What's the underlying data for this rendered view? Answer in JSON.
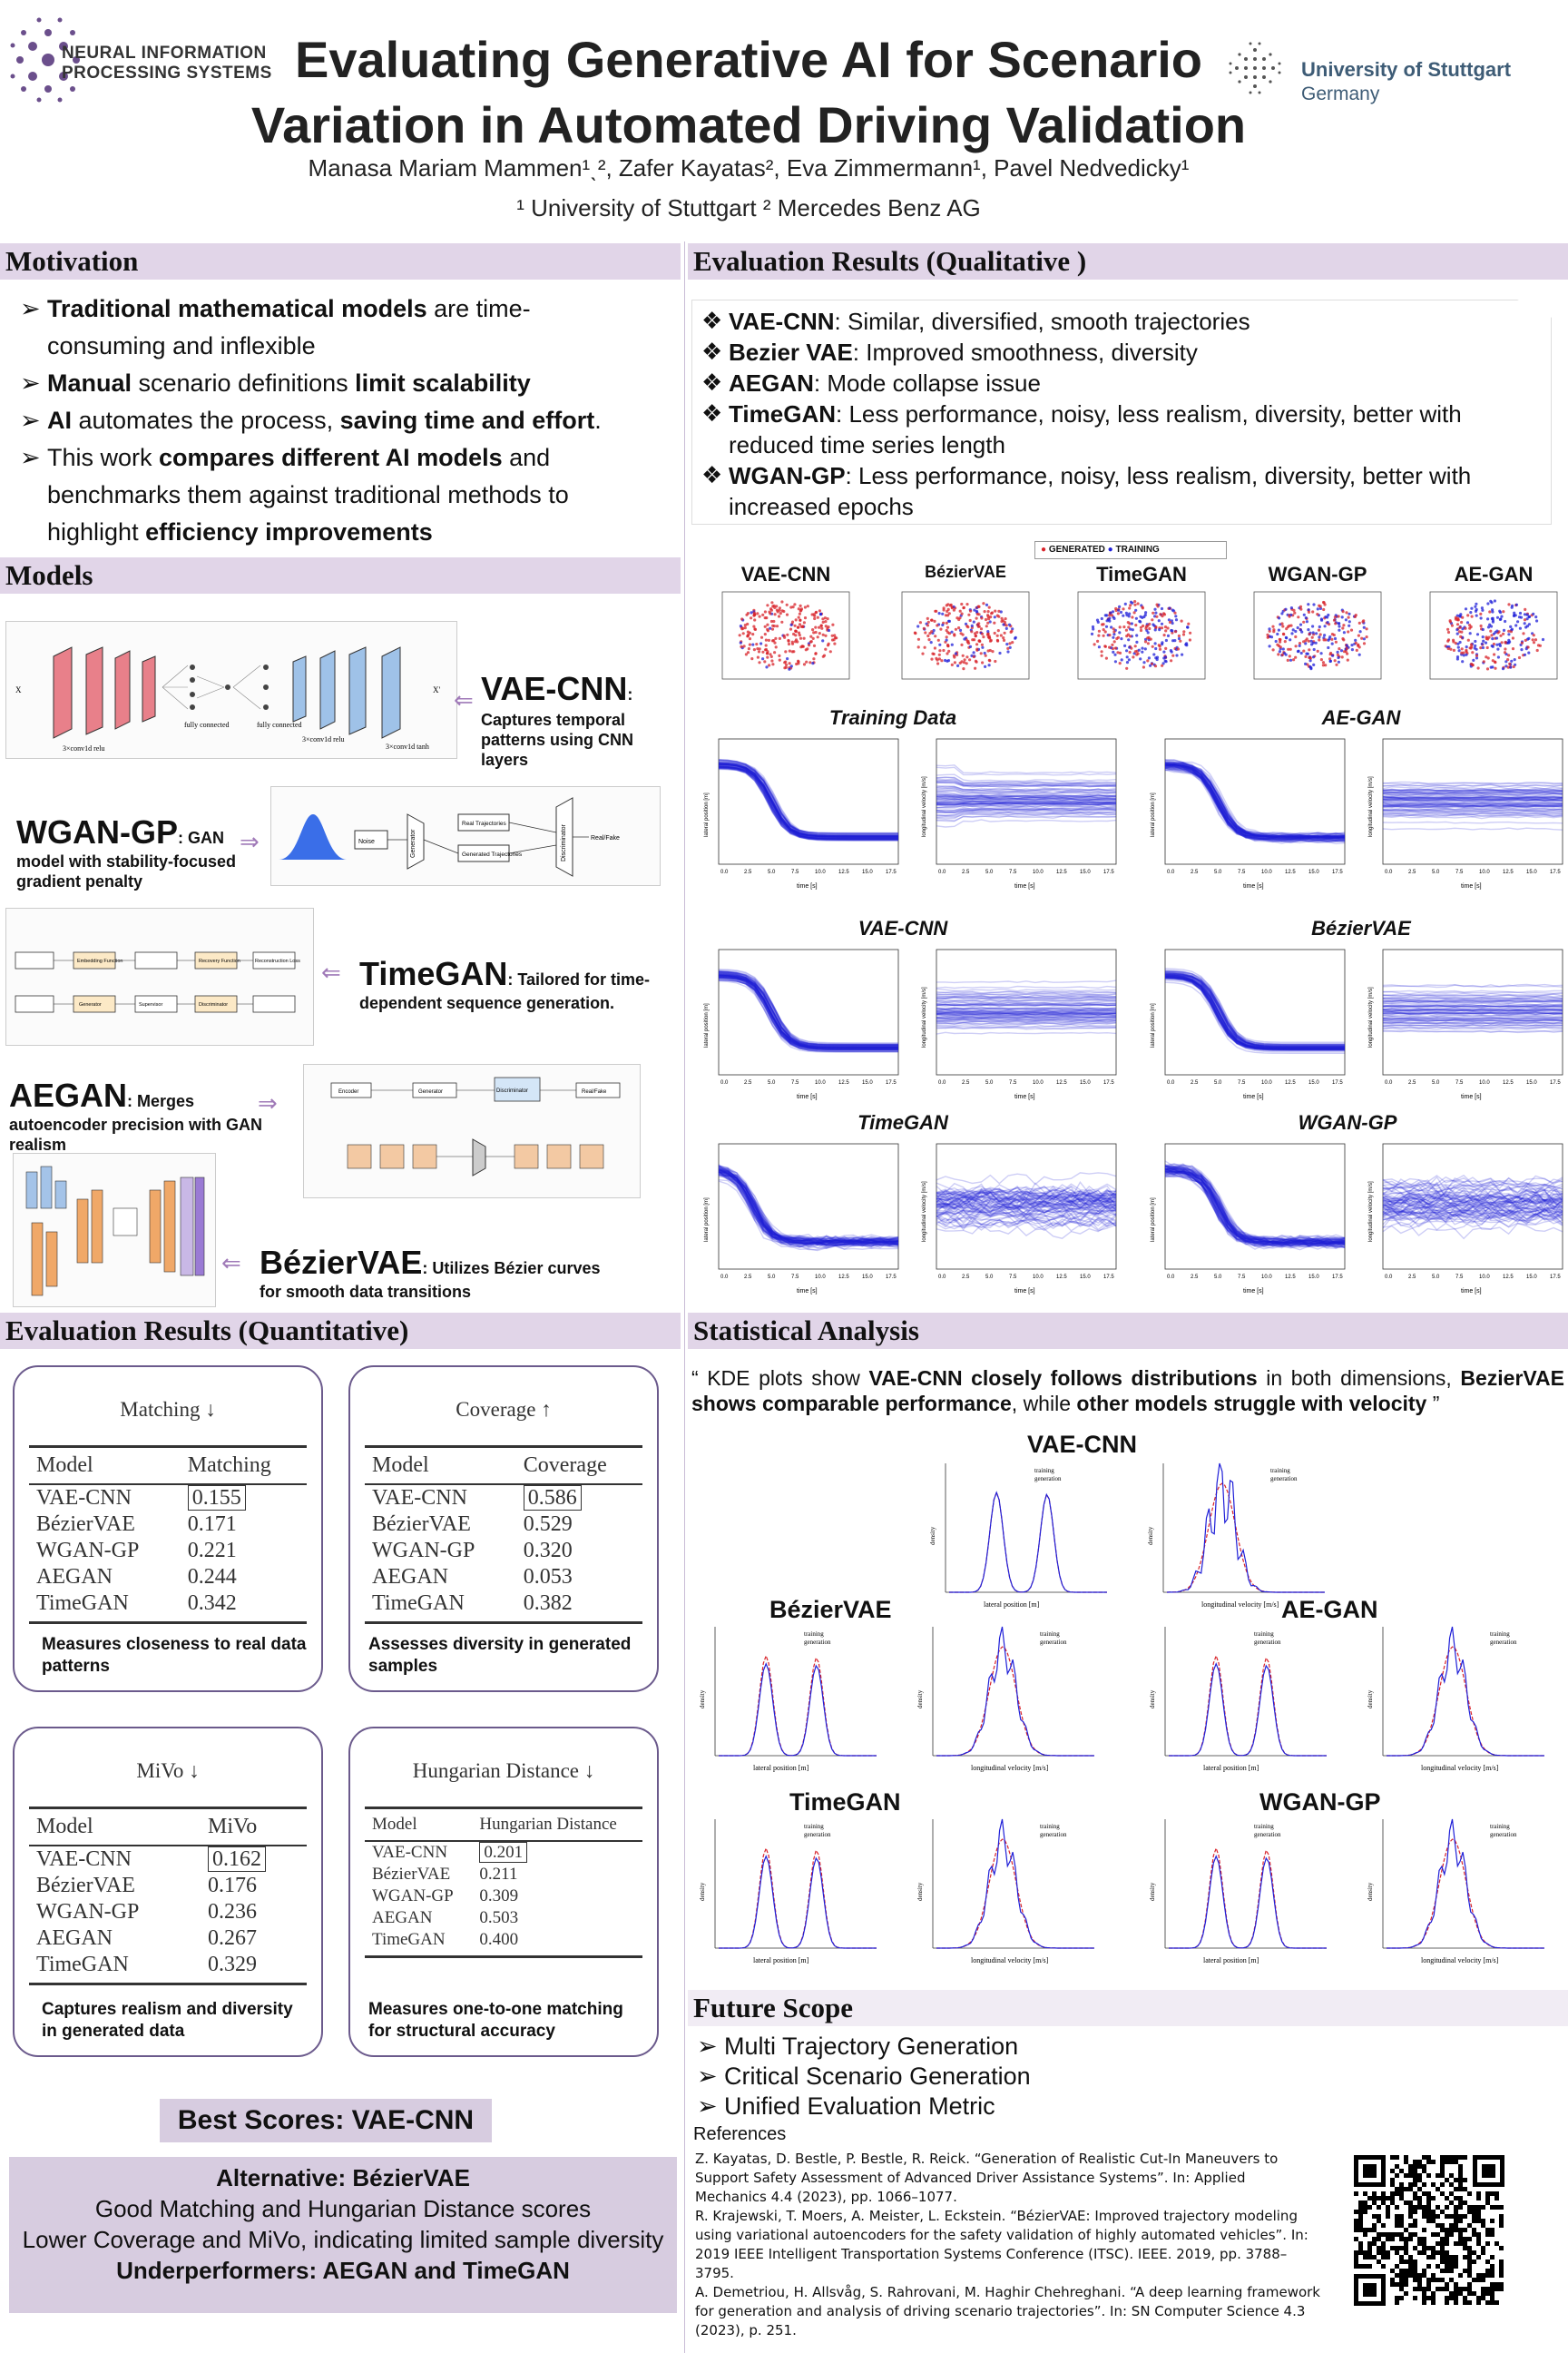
{
  "header": {
    "logo_left_text": [
      "NEURAL INFORMATION",
      "PROCESSING SYSTEMS"
    ],
    "title_line1": "Evaluating Generative AI for Scenario",
    "title_line2": "Variation in Automated Driving Validation",
    "authors": "Manasa Mariam Mammen¹ˎ², Zafer Kayatas², Eva Zimmermann¹, Pavel Nedvedicky¹",
    "affiliations": "¹ University of Stuttgart ² Mercedes Benz AG",
    "logo_right_text": [
      "University of Stuttgart",
      "Germany"
    ]
  },
  "motivation": {
    "heading": "Motivation",
    "bullets": [
      {
        "parts": [
          [
            "b",
            "Traditional mathematical models"
          ],
          [
            "n",
            " are time-consuming and inflexible"
          ]
        ]
      },
      {
        "parts": [
          [
            "b",
            "Manual"
          ],
          [
            "n",
            " scenario definitions "
          ],
          [
            "b",
            "limit scalability"
          ]
        ]
      },
      {
        "parts": [
          [
            "b",
            "AI"
          ],
          [
            "n",
            " automates the process, "
          ],
          [
            "b",
            "saving time and effort"
          ],
          [
            "n",
            "."
          ]
        ]
      },
      {
        "parts": [
          [
            "n",
            "This work "
          ],
          [
            "b",
            "compares different AI models"
          ],
          [
            "n",
            " and benchmarks them against traditional methods to highlight "
          ],
          [
            "b",
            "efficiency improvements"
          ]
        ]
      }
    ]
  },
  "models": {
    "heading": "Models",
    "items": [
      {
        "name": "VAE-CNN",
        "suffix": ":",
        "desc": "Captures temporal patterns using CNN layers"
      },
      {
        "name": "WGAN-GP",
        "suffix": ": GAN",
        "desc": "model with stability-focused gradient penalty"
      },
      {
        "name": "TimeGAN",
        "suffix": ": Tailored for time-",
        "desc": "dependent sequence generation."
      },
      {
        "name": "AEGAN",
        "suffix": ": Merges",
        "desc": "autoencoder precision with GAN realism"
      },
      {
        "name": "BézierVAE",
        "suffix": ": Utilizes Bézier curves",
        "desc": "for smooth data transitions"
      }
    ],
    "diagram_text": {
      "wgan": [
        "Real Trajectories",
        "Generated Trajectories",
        "Generator",
        "Discriminator",
        "Real/Fake",
        "Noise"
      ],
      "vae": [
        "fully connected",
        "fully connected",
        "3×conv1d relu",
        "3×conv1d relu",
        "3×conv1d tanh"
      ],
      "timegan": [
        "Embedding Function",
        "Recovery Function",
        "Generator",
        "Discriminator",
        "Supervisor",
        "Reconstruction Loss"
      ],
      "aegan": [
        "Encoder",
        "Generator",
        "Discriminator",
        "Real/Fake"
      ]
    }
  },
  "quant": {
    "heading": "Evaluation Results (Quantitative)",
    "cards": [
      {
        "title": "Matching ↓",
        "col1": "Model",
        "col2": "Matching",
        "rows": [
          [
            "VAE-CNN",
            "0.155"
          ],
          [
            "BézierVAE",
            "0.171"
          ],
          [
            "WGAN-GP",
            "0.221"
          ],
          [
            "AEGAN",
            "0.244"
          ],
          [
            "TimeGAN",
            "0.342"
          ]
        ],
        "note": "Measures closeness to real data patterns"
      },
      {
        "title": "Coverage ↑",
        "col1": "Model",
        "col2": "Coverage",
        "rows": [
          [
            "VAE-CNN",
            "0.586"
          ],
          [
            "BézierVAE",
            "0.529"
          ],
          [
            "WGAN-GP",
            "0.320"
          ],
          [
            "AEGAN",
            "0.053"
          ],
          [
            "TimeGAN",
            "0.382"
          ]
        ],
        "note": "Assesses diversity in generated samples"
      },
      {
        "title": "MiVo ↓",
        "col1": "Model",
        "col2": "MiVo",
        "rows": [
          [
            "VAE-CNN",
            "0.162"
          ],
          [
            "BézierVAE",
            "0.176"
          ],
          [
            "WGAN-GP",
            "0.236"
          ],
          [
            "AEGAN",
            "0.267"
          ],
          [
            "TimeGAN",
            "0.329"
          ]
        ],
        "note": "Captures realism and diversity in generated data"
      },
      {
        "title": "Hungarian Distance ↓",
        "col1": "Model",
        "col2": "Hungarian Distance",
        "rows": [
          [
            "VAE-CNN",
            "0.201"
          ],
          [
            "BézierVAE",
            "0.211"
          ],
          [
            "WGAN-GP",
            "0.309"
          ],
          [
            "AEGAN",
            "0.503"
          ],
          [
            "TimeGAN",
            "0.400"
          ]
        ],
        "note": "Measures one-to-one matching for structural accuracy"
      }
    ],
    "best": "Best Scores: VAE-CNN",
    "summary": {
      "alt": "Alternative: BézierVAE",
      "line1": "Good Matching and Hungarian Distance scores",
      "line2": "Lower Coverage and MiVo, indicating limited sample diversity",
      "under": "Underperformers: AEGAN and TimeGAN"
    }
  },
  "qual": {
    "heading": "Evaluation Results (Qualitative )",
    "bullets": [
      {
        "model": "VAE-CNN",
        "text": ": Similar, diversified, smooth trajectories"
      },
      {
        "model": "Bezier VAE",
        "text": ": Improved smoothness, diversity"
      },
      {
        "model": "AEGAN",
        "text": ": Mode collapse issue"
      },
      {
        "model": "TimeGAN",
        "text": ": Less performance, noisy, less realism, diversity, better with reduced time series length"
      },
      {
        "model": "WGAN-GP",
        "text": ": Less performance, noisy, less realism, diversity, better with increased epochs"
      }
    ],
    "legend": [
      "GENERATED",
      "TRAINING"
    ],
    "scatter_titles": [
      "VAE-CNN",
      "BézierVAE",
      "TimeGAN",
      "WGAN-GP",
      "AE-GAN"
    ],
    "traj_titles": [
      "Training Data",
      "AE-GAN",
      "VAE-CNN",
      "BézierVAE",
      "TimeGAN",
      "WGAN-GP"
    ],
    "axis": {
      "time": "time [s]",
      "lat": "lateral position [m]",
      "vel": "longitudinal velocity [m/s]"
    },
    "time_ticks": [
      "0.0",
      "2.5",
      "5.0",
      "7.5",
      "10.0",
      "12.5",
      "15.0",
      "17.5"
    ]
  },
  "stats": {
    "heading": "Statistical Analysis",
    "quote_parts": [
      [
        "n",
        "“ KDE plots show "
      ],
      [
        "b",
        "VAE-CNN closely follows distributions"
      ],
      [
        "n",
        " in both dimensions, "
      ],
      [
        "b",
        "BezierVAE shows comparable performance"
      ],
      [
        "n",
        ", while "
      ],
      [
        "b",
        "other models struggle with velocity"
      ],
      [
        "n",
        " ”"
      ]
    ],
    "kde_titles": [
      "VAE-CNN",
      "BézierVAE",
      "AE-GAN",
      "TimeGAN",
      "WGAN-GP"
    ],
    "kde_legend": [
      "training",
      "generation"
    ],
    "x_lat": "lateral position [m]",
    "x_vel": "longitudinal velocity [m/s]",
    "y_label": "density"
  },
  "future": {
    "heading": "Future Scope",
    "items": [
      "Multi Trajectory Generation",
      "Critical Scenario Generation",
      "Unified Evaluation Metric"
    ],
    "refs_heading": "References",
    "refs": [
      "Z. Kayatas, D. Bestle, P. Bestle, R. Reick. “Generation of Realistic Cut-In Maneuvers to Support Safety Assessment of Advanced Driver Assistance Systems”. In: Applied Mechanics 4.4 (2023), pp. 1066–1077.",
      "R. Krajewski, T. Moers, A. Meister, L. Eckstein. “BézierVAE: Improved trajectory modeling using variational autoencoders for the safety validation of highly automated vehicles”. In: 2019 IEEE Intelligent Transportation Systems Conference (ITSC). IEEE. 2019, pp. 3788–3795.",
      "A. Demetriou, H. Allsvåg, S. Rahrovani, M. Haghir Chehreghani. “A deep learning framework for generation and analysis of driving scenario trajectories”. In: SN Computer Science 4.3 (2023), p. 251."
    ]
  },
  "colors": {
    "section_bg": "#e1d5e8",
    "accent": "#6b5a8c",
    "blue": "#1f1fd8",
    "red": "#d8232a"
  }
}
